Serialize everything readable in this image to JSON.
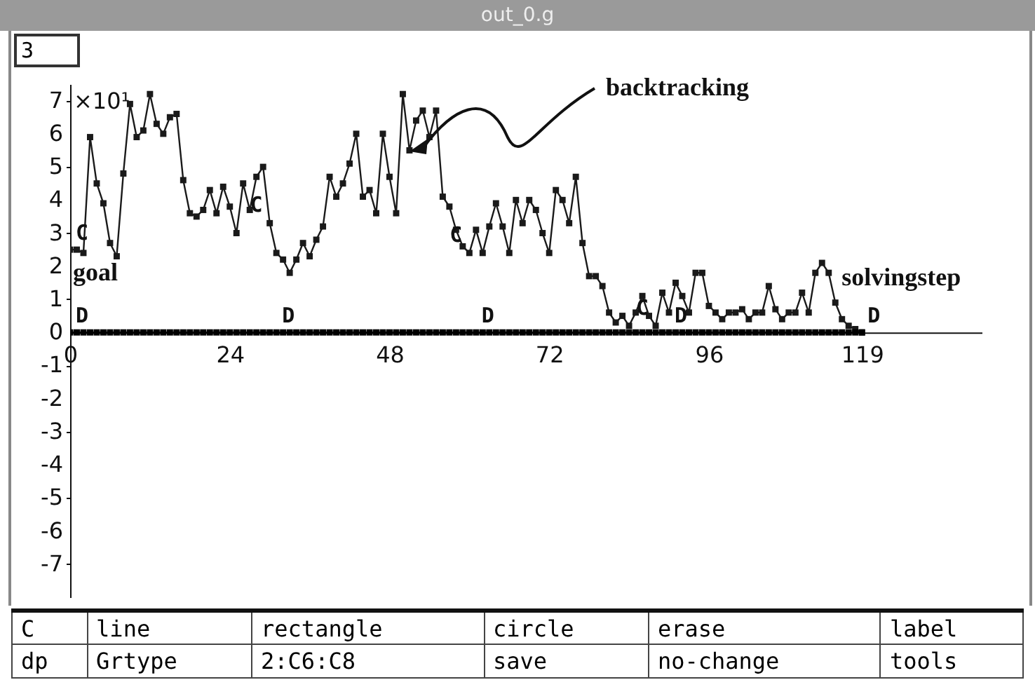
{
  "chart_data": {
    "type": "line",
    "title": "out_0.g",
    "x": [
      0,
      1,
      2,
      3,
      4,
      5,
      6,
      7,
      8,
      9,
      10,
      11,
      12,
      13,
      14,
      15,
      16,
      17,
      18,
      19,
      20,
      21,
      22,
      23,
      24,
      25,
      26,
      27,
      28,
      29,
      30,
      31,
      32,
      33,
      34,
      35,
      36,
      37,
      38,
      39,
      40,
      41,
      42,
      43,
      44,
      45,
      46,
      47,
      48,
      49,
      50,
      51,
      52,
      53,
      54,
      55,
      56,
      57,
      58,
      59,
      60,
      61,
      62,
      63,
      64,
      65,
      66,
      67,
      68,
      69,
      70,
      71,
      72,
      73,
      74,
      75,
      76,
      77,
      78,
      79,
      80,
      81,
      82,
      83,
      84,
      85,
      86,
      87,
      88,
      89,
      90,
      91,
      92,
      93,
      94,
      95,
      96,
      97,
      98,
      99,
      100,
      101,
      102,
      103,
      104,
      105,
      106,
      107,
      108,
      109,
      110,
      111,
      112,
      113,
      114,
      115,
      116,
      117,
      118,
      119
    ],
    "series": [
      {
        "color": "#1a1a1a",
        "values": [
          2.5,
          2.5,
          2.4,
          5.9,
          4.5,
          3.9,
          2.7,
          2.3,
          4.8,
          6.9,
          5.9,
          6.1,
          7.2,
          6.3,
          6.0,
          6.5,
          6.6,
          4.6,
          3.6,
          3.5,
          3.7,
          4.3,
          3.6,
          4.4,
          3.8,
          3.0,
          4.5,
          3.7,
          4.7,
          5.0,
          3.3,
          2.4,
          2.2,
          1.8,
          2.2,
          2.7,
          2.3,
          2.8,
          3.2,
          4.7,
          4.1,
          4.5,
          5.1,
          6.0,
          4.1,
          4.3,
          3.6,
          6.0,
          4.7,
          3.6,
          7.2,
          5.5,
          6.4,
          6.7,
          5.9,
          6.7,
          4.1,
          3.8,
          3.1,
          2.6,
          2.4,
          3.1,
          2.4,
          3.2,
          3.9,
          3.2,
          2.4,
          4.0,
          3.3,
          4.0,
          3.7,
          3.0,
          2.4,
          4.3,
          4.0,
          3.3,
          4.7,
          2.7,
          1.7,
          1.7,
          1.4,
          0.6,
          0.3,
          0.5,
          0.2,
          0.6,
          1.1,
          0.5,
          0.2,
          1.2,
          0.6,
          1.5,
          1.1,
          0.6,
          1.8,
          1.8,
          0.8,
          0.6,
          0.4,
          0.6,
          0.6,
          0.7,
          0.4,
          0.6,
          0.6,
          1.4,
          0.7,
          0.4,
          0.6,
          0.6,
          1.2,
          0.6,
          1.8,
          2.1,
          1.8,
          0.9,
          0.4,
          0.2,
          0.1,
          0
        ]
      },
      {
        "color": "#000000",
        "values": [
          0,
          0,
          0,
          0,
          0,
          0,
          0,
          0,
          0,
          0,
          0,
          0,
          0,
          0,
          0,
          0,
          0,
          0,
          0,
          0,
          0,
          0,
          0,
          0,
          0,
          0,
          0,
          0,
          0,
          0,
          0,
          0,
          0,
          0,
          0,
          0,
          0,
          0,
          0,
          0,
          0,
          0,
          0,
          0,
          0,
          0,
          0,
          0,
          0,
          0,
          0,
          0,
          0,
          0,
          0,
          0,
          0,
          0,
          0,
          0,
          0,
          0,
          0,
          0,
          0,
          0,
          0,
          0,
          0,
          0,
          0,
          0,
          0,
          0,
          0,
          0,
          0,
          0,
          0,
          0,
          0,
          0,
          0,
          0,
          0,
          0,
          0,
          0,
          0,
          0,
          0,
          0,
          0,
          0,
          0,
          0,
          0,
          0,
          0,
          0,
          0,
          0,
          0,
          0,
          0,
          0,
          0,
          0,
          0,
          0,
          0,
          0,
          0,
          0,
          0,
          0,
          0,
          0,
          0,
          0
        ]
      }
    ],
    "marker": "square",
    "xlim": [
      0,
      137
    ],
    "xticks": [
      0,
      24,
      48,
      72,
      96,
      119
    ],
    "ylim": [
      -8,
      7.5
    ],
    "yticks": [
      -7,
      -6,
      -5,
      -4,
      -3,
      -2,
      -1,
      0,
      1,
      2,
      3,
      4,
      5,
      6,
      7
    ],
    "ylabel": "×10¹",
    "annotations": [
      "backtracking",
      {
        "text": "goal",
        "x": 0,
        "y": 2.5
      },
      {
        "text": "solvingstep",
        "x": 113,
        "y": 2.1
      },
      {
        "text": "C",
        "x": 0,
        "y": 2.5
      },
      {
        "text": "C",
        "x": 30,
        "y": 3.3
      },
      {
        "text": "C",
        "x": 60,
        "y": 2.4
      },
      {
        "text": "C",
        "x": 88,
        "y": 0.2
      },
      {
        "text": "D",
        "x": 0,
        "y": 0
      },
      {
        "text": "D",
        "x": 31,
        "y": 0
      },
      {
        "text": "D",
        "x": 61,
        "y": 0
      },
      {
        "text": "D",
        "x": 90,
        "y": 0
      },
      {
        "text": "D",
        "x": 119,
        "y": 0
      },
      "3",
      "C",
      "line",
      "rectangle",
      "circle",
      "erase",
      "label",
      "dp",
      "Grtype",
      "2:C6:C8",
      "save",
      "no-change",
      "tools"
    ]
  }
}
